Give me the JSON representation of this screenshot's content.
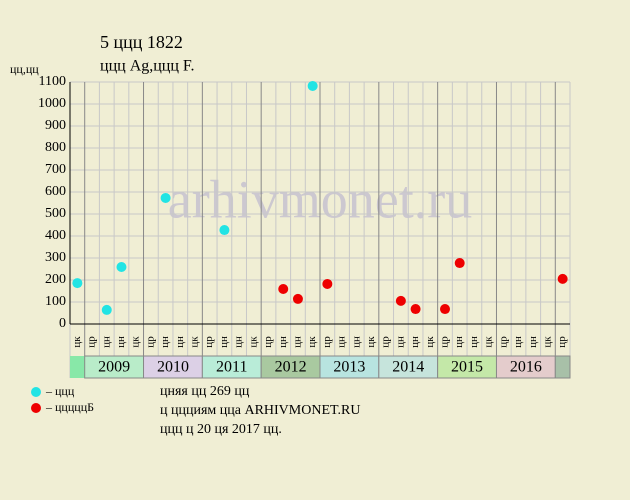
{
  "chart_data": {
    "type": "scatter",
    "title": "5 ццц 1822",
    "subtitle": "ццц Ag,ццц F.",
    "y_label": "цц,цц",
    "watermark": "arhivmonet.ru",
    "categories": [
      "цк",
      "цр",
      "цн",
      "цн",
      "цк",
      "цр",
      "цн",
      "цн",
      "цк",
      "цр",
      "цн",
      "цн",
      "цк",
      "цр",
      "цн",
      "цн",
      "цк",
      "цр",
      "цн",
      "цн",
      "цк",
      "цр",
      "цн",
      "цн",
      "цк",
      "цр",
      "цн",
      "цн",
      "цк",
      "цр",
      "цн",
      "цн",
      "цк",
      "цр"
    ],
    "years": [
      {
        "label": "2009",
        "color": "#b9ecc9"
      },
      {
        "label": "2010",
        "color": "#dcd0e6"
      },
      {
        "label": "2011",
        "color": "#b9ecd8"
      },
      {
        "label": "2012",
        "color": "#a9c9a0"
      },
      {
        "label": "2013",
        "color": "#b8e4e0"
      },
      {
        "label": "2014",
        "color": "#c6e4dc"
      },
      {
        "label": "2015",
        "color": "#c4e8a8"
      },
      {
        "label": "2016",
        "color": "#e4cccc"
      }
    ],
    "series": [
      {
        "name": "– ццц",
        "color": "#22e4e4",
        "values": [
          186,
          null,
          64,
          259,
          null,
          null,
          573,
          null,
          null,
          null,
          427,
          null,
          null,
          null,
          null,
          null,
          1082,
          null,
          null,
          null,
          null,
          null,
          null,
          null,
          null,
          null,
          null,
          null,
          null,
          null,
          null,
          null,
          null,
          null
        ]
      },
      {
        "name": "– цццццБ",
        "color": "#ee0000",
        "values": [
          null,
          null,
          null,
          null,
          null,
          null,
          null,
          null,
          null,
          null,
          null,
          null,
          null,
          null,
          159,
          114,
          null,
          182,
          null,
          null,
          null,
          null,
          105,
          68,
          null,
          68,
          277,
          null,
          null,
          null,
          null,
          null,
          null,
          205
        ]
      }
    ],
    "ylim": [
      0,
      1100
    ],
    "yticks": [
      0,
      100,
      200,
      300,
      400,
      500,
      600,
      700,
      800,
      900,
      1000,
      1100
    ],
    "grid": true,
    "notes": [
      "цняя цц 269 цц",
      "ц ццциям цца ARHIVMONET.RU",
      "ццц ц 20 ця 2017 цц."
    ]
  }
}
